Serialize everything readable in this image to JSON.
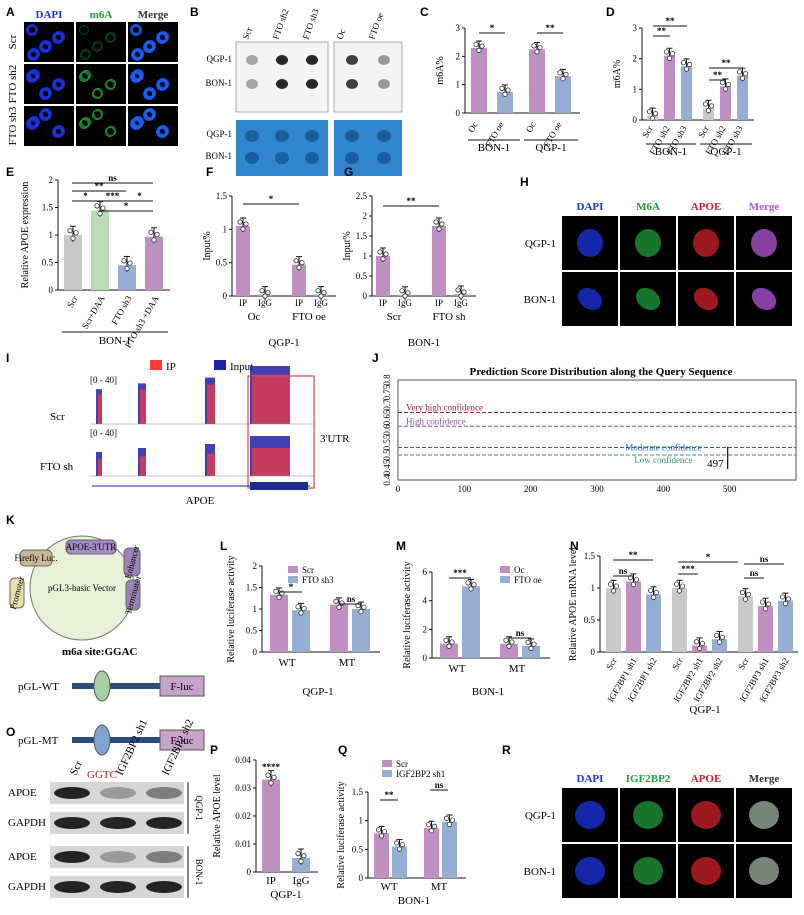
{
  "panel_letters": [
    "A",
    "B",
    "C",
    "D",
    "E",
    "F",
    "G",
    "H",
    "I",
    "J",
    "K",
    "L",
    "M",
    "N",
    "O",
    "P",
    "Q",
    "R"
  ],
  "colors": {
    "scr": "#c9c9c9",
    "green": "#b8dcb4",
    "purple": "#c08fc4",
    "blue": "#97aed4",
    "blueSheet": "#2f86cf",
    "ipRed": "#ff3b3b",
    "inputBlue": "#2020a8",
    "dapi": "#1a34e0",
    "m6a": "#1f9e3a",
    "apoe": "#d0222a",
    "box": "#d7474e"
  },
  "A": {
    "cols": [
      "DAPI",
      "m6A",
      "Merge"
    ],
    "rows": [
      "Scr",
      "FTO sh2",
      "FTO sh3"
    ]
  },
  "B": {
    "cols_left": [
      "Scr",
      "FTO sh2",
      "FTO sh3"
    ],
    "cols_right": [
      "Oc",
      "FTO oe"
    ],
    "rows": [
      "QGP-1",
      "BON-1"
    ]
  },
  "H": {
    "cols": [
      "DAPI",
      "M6A",
      "APOE",
      "Merge"
    ],
    "rows": [
      "QGP-1",
      "BON-1"
    ]
  },
  "R": {
    "cols": [
      "DAPI",
      "IGF2BP2",
      "APOE",
      "Merge"
    ],
    "rows": [
      "QGP-1",
      "BON-1"
    ]
  },
  "I": {
    "legend": [
      "IP",
      "Input"
    ],
    "rows": [
      "Scr",
      "FTO sh"
    ],
    "region_label": "3'UTR",
    "gene": "APOE",
    "scale": "[0 - 40]"
  },
  "K": {
    "vector": "pGL3-basic Vector",
    "segments": [
      "APOE-3'UTR",
      "Firefly Luc.",
      "SV40",
      "Promoter",
      "Enhancer",
      "Terminator"
    ],
    "site": "m6a site:GGAC",
    "wt": "pGL-WT",
    "mt": "pGL-MT",
    "fluc": "F-luc",
    "mut": "GGTC"
  },
  "O": {
    "lanes": [
      "Scr",
      "IGF2BP2 sh1",
      "IGF2BP2 sh2"
    ],
    "bands": [
      "APOE",
      "GAPDH",
      "APOE",
      "GAPDH"
    ],
    "cells": [
      "QGP-1",
      "BON-1"
    ]
  },
  "chart_data": [
    {
      "panel": "C",
      "type": "bar",
      "ylabel": "m6A%",
      "ylim": [
        0,
        3
      ],
      "yticks": [
        0,
        1,
        2,
        3
      ],
      "categories": [
        "Oc",
        "FTO oe",
        "Oc",
        "FTO oe"
      ],
      "groups": [
        "BON-1",
        "QGP-1"
      ],
      "values": [
        2.3,
        0.75,
        2.25,
        1.3
      ],
      "significance": [
        "*",
        "**"
      ]
    },
    {
      "panel": "D",
      "type": "bar",
      "ylabel": "m6A%",
      "ylim": [
        0,
        3
      ],
      "yticks": [
        0,
        1,
        2,
        3
      ],
      "categories": [
        "Scr",
        "FTO sh2",
        "FTO sh3",
        "Scr",
        "FTO sh2",
        "FTO sh3"
      ],
      "groups": [
        "BON-1",
        "QGP-1"
      ],
      "values": [
        0.15,
        2.1,
        1.75,
        0.4,
        1.1,
        1.45
      ],
      "significance": [
        "**",
        "**",
        "**",
        "**"
      ]
    },
    {
      "panel": "E",
      "type": "bar",
      "ylabel": "Relative APOE expression",
      "ylim": [
        0,
        2
      ],
      "yticks": [
        0.0,
        0.5,
        1.0,
        1.5,
        2.0
      ],
      "categories": [
        "Scr",
        "Scr+DAA",
        "FTO sh3",
        "FTO sh3 +DAA"
      ],
      "group": "BON-1",
      "values": [
        1.0,
        1.45,
        0.45,
        0.97
      ],
      "significance": [
        "ns",
        "**",
        "*",
        "***",
        "*",
        "*"
      ]
    },
    {
      "panel": "F",
      "type": "bar",
      "ylabel": "Input%",
      "ylim": [
        0,
        1.5
      ],
      "yticks": [
        0.0,
        0.5,
        1.0,
        1.5
      ],
      "categories": [
        "IP",
        "IgG",
        "IP",
        "IgG"
      ],
      "groups": [
        "Oc",
        "FTO oe"
      ],
      "group": "QGP-1",
      "values": [
        1.05,
        0.02,
        0.47,
        0.02
      ],
      "significance": [
        "*"
      ]
    },
    {
      "panel": "G",
      "type": "bar",
      "ylabel": "Input%",
      "ylim": [
        0,
        2.5
      ],
      "yticks": [
        0.0,
        0.5,
        1.0,
        1.5,
        2.0,
        2.5
      ],
      "categories": [
        "IP",
        "IgG",
        "IP",
        "IgG"
      ],
      "groups": [
        "Scr",
        "FTO sh"
      ],
      "group": "BON-1",
      "values": [
        1.0,
        0.03,
        1.75,
        0.05
      ],
      "significance": [
        "**"
      ]
    },
    {
      "panel": "J",
      "type": "line",
      "title": "Prediction Score Distribution along the Query Sequence",
      "xlim": [
        0,
        600
      ],
      "xticks": [
        0,
        100,
        200,
        300,
        400,
        500
      ],
      "ylim": [
        0.4,
        0.8
      ],
      "yticks": [
        0.4,
        0.45,
        0.5,
        0.55,
        0.6,
        0.65,
        0.7,
        0.75,
        0.8
      ],
      "thresholds": [
        {
          "name": "Very high confidence",
          "y": 0.67,
          "color": "#8b2a3a"
        },
        {
          "name": "High confidence",
          "y": 0.615,
          "color": "#7a5a8c"
        },
        {
          "name": "Moderate confidence",
          "y": 0.53,
          "color": "#2c6aa0"
        },
        {
          "name": "Low confidence",
          "y": 0.5,
          "color": "#3f8f7c"
        }
      ],
      "peak": {
        "x": 497,
        "y": 0.5,
        "label": "497"
      }
    },
    {
      "panel": "L",
      "type": "bar",
      "ylabel": "Relative luciferase activity",
      "ylim": [
        0,
        2
      ],
      "yticks": [
        0.0,
        0.5,
        1.0,
        1.5,
        2.0
      ],
      "categories": [
        "WT",
        "MT"
      ],
      "group": "QGP-1",
      "series": [
        {
          "name": "Scr",
          "values": [
            1.33,
            1.1
          ]
        },
        {
          "name": "FTO sh3",
          "values": [
            0.97,
            1.0
          ]
        }
      ],
      "significance": [
        "*",
        "ns"
      ]
    },
    {
      "panel": "M",
      "type": "bar",
      "ylabel": "Relative luciferase activity",
      "ylim": [
        0,
        6
      ],
      "yticks": [
        0,
        2,
        4,
        6
      ],
      "categories": [
        "WT",
        "MT"
      ],
      "group": "BON-1",
      "series": [
        {
          "name": "Oc",
          "values": [
            1.0,
            1.0
          ]
        },
        {
          "name": "FTO oe",
          "values": [
            5.0,
            0.85
          ]
        }
      ],
      "significance": [
        "***",
        "ns"
      ]
    },
    {
      "panel": "N",
      "type": "bar",
      "ylabel": "Relative APOE mRNA level",
      "ylim": [
        0,
        1.5
      ],
      "yticks": [
        0.0,
        0.5,
        1.0,
        1.5
      ],
      "categories": [
        "Scr",
        "IGF2BP1 sh1",
        "IGF2BP1 sh2",
        "Scr",
        "IGF2BP2 sh1",
        "IGF2BP2 sh2",
        "Scr",
        "IGF2BP3 sh1",
        "IGF2BP3 sh2"
      ],
      "group": "QGP-1",
      "values": [
        1.0,
        1.1,
        0.9,
        1.0,
        0.1,
        0.2,
        0.87,
        0.72,
        0.8
      ],
      "significance": [
        "**",
        "ns",
        "*",
        "***",
        "ns",
        "ns"
      ]
    },
    {
      "panel": "P",
      "type": "bar",
      "ylabel": "Relative APOE level",
      "ylim": [
        0,
        0.04
      ],
      "yticks": [
        0.0,
        0.01,
        0.02,
        0.03,
        0.04
      ],
      "categories": [
        "IP",
        "IgG"
      ],
      "group": "QGP-1",
      "values": [
        0.033,
        0.005
      ],
      "significance": [
        "****"
      ]
    },
    {
      "panel": "Q",
      "type": "bar",
      "ylabel": "Relative luciferase activity",
      "ylim": [
        0,
        1.5
      ],
      "yticks": [
        0.0,
        0.5,
        1.0,
        1.5
      ],
      "categories": [
        "WT",
        "MT"
      ],
      "group": "BON-1",
      "series": [
        {
          "name": "Scr",
          "values": [
            0.78,
            0.87
          ]
        },
        {
          "name": "IGF2BP2 sh1",
          "values": [
            0.55,
            0.98
          ]
        }
      ],
      "significance": [
        "**",
        "ns"
      ]
    }
  ]
}
